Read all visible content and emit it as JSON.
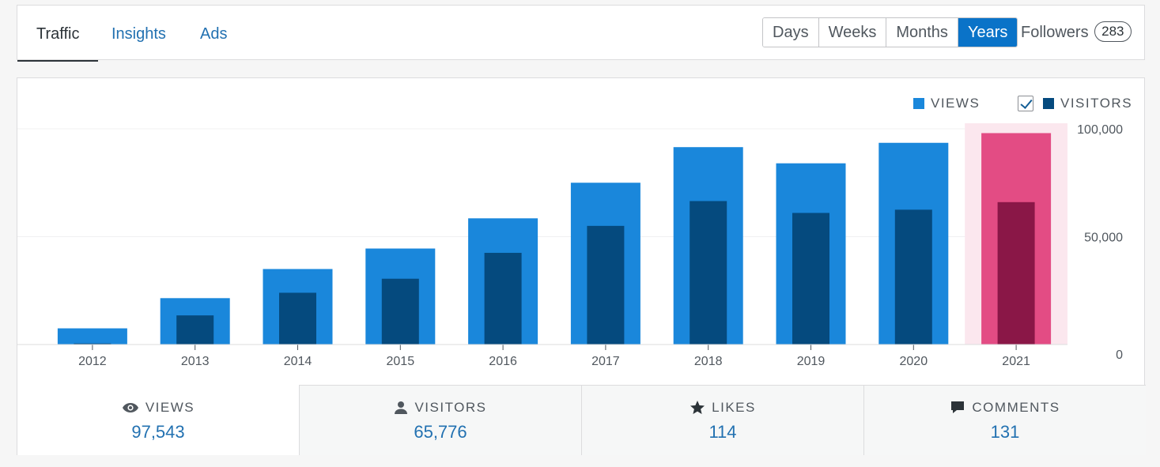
{
  "tabs": [
    {
      "label": "Traffic",
      "active": true
    },
    {
      "label": "Insights",
      "active": false
    },
    {
      "label": "Ads",
      "active": false
    }
  ],
  "periods": [
    {
      "label": "Days",
      "active": false
    },
    {
      "label": "Weeks",
      "active": false
    },
    {
      "label": "Months",
      "active": false
    },
    {
      "label": "Years",
      "active": true
    }
  ],
  "followers": {
    "label": "Followers",
    "count": "283"
  },
  "legend": {
    "views_label": "VIEWS",
    "visitors_label": "VISITORS",
    "views_color": "#1a87db",
    "visitors_color": "#054a7e",
    "highlight_views_color": "#e34c84",
    "highlight_visitors_color": "#8a1747",
    "highlight_bg_color": "#fbe7ee"
  },
  "chart_data": {
    "type": "bar",
    "categories": [
      "2012",
      "2013",
      "2014",
      "2015",
      "2016",
      "2017",
      "2018",
      "2019",
      "2020",
      "2021"
    ],
    "series": [
      {
        "name": "VIEWS",
        "values": [
          7500,
          21500,
          35000,
          44500,
          58500,
          75000,
          91500,
          84000,
          93500,
          98000
        ]
      },
      {
        "name": "VISITORS",
        "values": [
          500,
          13500,
          24000,
          30500,
          42500,
          55000,
          66500,
          61000,
          62500,
          66000
        ]
      }
    ],
    "highlighted_category": "2021",
    "ylim": [
      0,
      100000
    ],
    "yticks": [
      "0",
      "50,000",
      "100,000"
    ],
    "ytick_values": [
      0,
      50000,
      100000
    ],
    "grid": true
  },
  "stats": [
    {
      "label": "VIEWS",
      "value": "97,543",
      "icon": "eye-icon",
      "active": true
    },
    {
      "label": "VISITORS",
      "value": "65,776",
      "icon": "person-icon",
      "active": false
    },
    {
      "label": "LIKES",
      "value": "114",
      "icon": "star-icon",
      "active": false
    },
    {
      "label": "COMMENTS",
      "value": "131",
      "icon": "comment-icon",
      "active": false
    }
  ]
}
